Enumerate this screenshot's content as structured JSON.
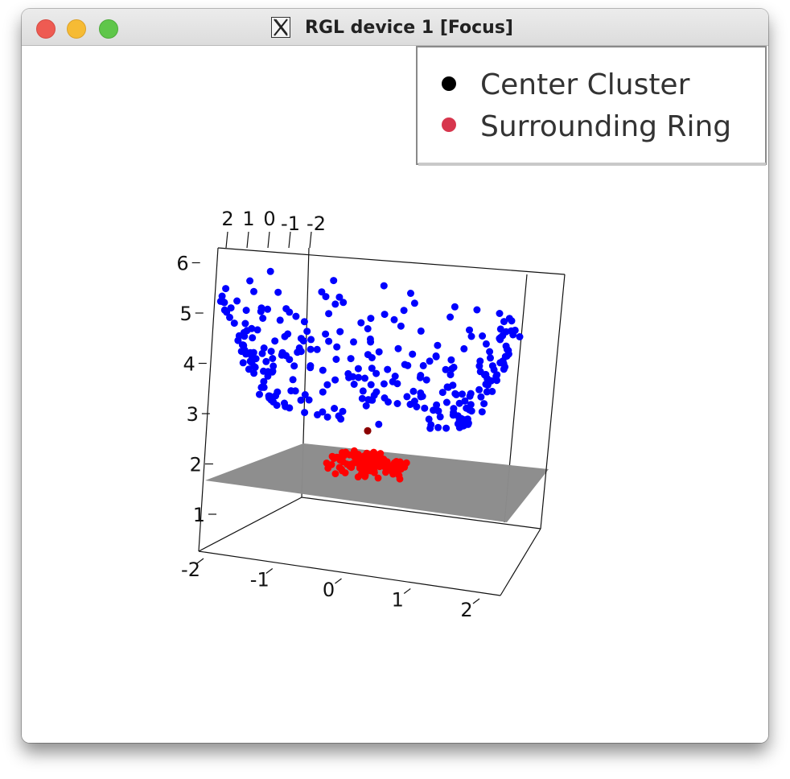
{
  "window": {
    "title": "RGL device 1 [Focus]",
    "controls": [
      "close",
      "minimize",
      "zoom"
    ],
    "icon": "x11-icon"
  },
  "legend": {
    "items": [
      {
        "label": "Center Cluster",
        "color": "#000000"
      },
      {
        "label": "Surrounding Ring",
        "color": "#d7364d"
      }
    ]
  },
  "chart_data": {
    "type": "scatter",
    "projection": "3d",
    "title": "",
    "axes": {
      "x": {
        "label": "",
        "range": [
          -2,
          2
        ],
        "ticks": [
          "-2",
          "-1",
          "0",
          "1",
          "2"
        ]
      },
      "y": {
        "label": "",
        "range": [
          -2,
          2
        ],
        "ticks": [
          "2",
          "1",
          "0",
          "-1",
          "-2"
        ]
      },
      "z": {
        "label": "",
        "range": [
          1,
          6
        ],
        "ticks": [
          "1",
          "2",
          "3",
          "4",
          "5",
          "6"
        ]
      }
    },
    "plane": {
      "z": 1.7,
      "color": "#888888"
    },
    "series": [
      {
        "color": "#0000ff",
        "shape": "parabolic bowl z ≈ 2 + r², r from ~1.3 to ~2",
        "z_range": [
          2.2,
          6.2
        ]
      },
      {
        "color": "#ff0000",
        "shape": "hemispherical cluster near origin",
        "z_range": [
          0.9,
          1.5
        ]
      },
      {
        "color": "#8b0000",
        "points": [
          {
            "x": 0,
            "y": 0,
            "z": 1.7
          }
        ]
      }
    ],
    "legend_position": "top-right",
    "grid": false
  }
}
